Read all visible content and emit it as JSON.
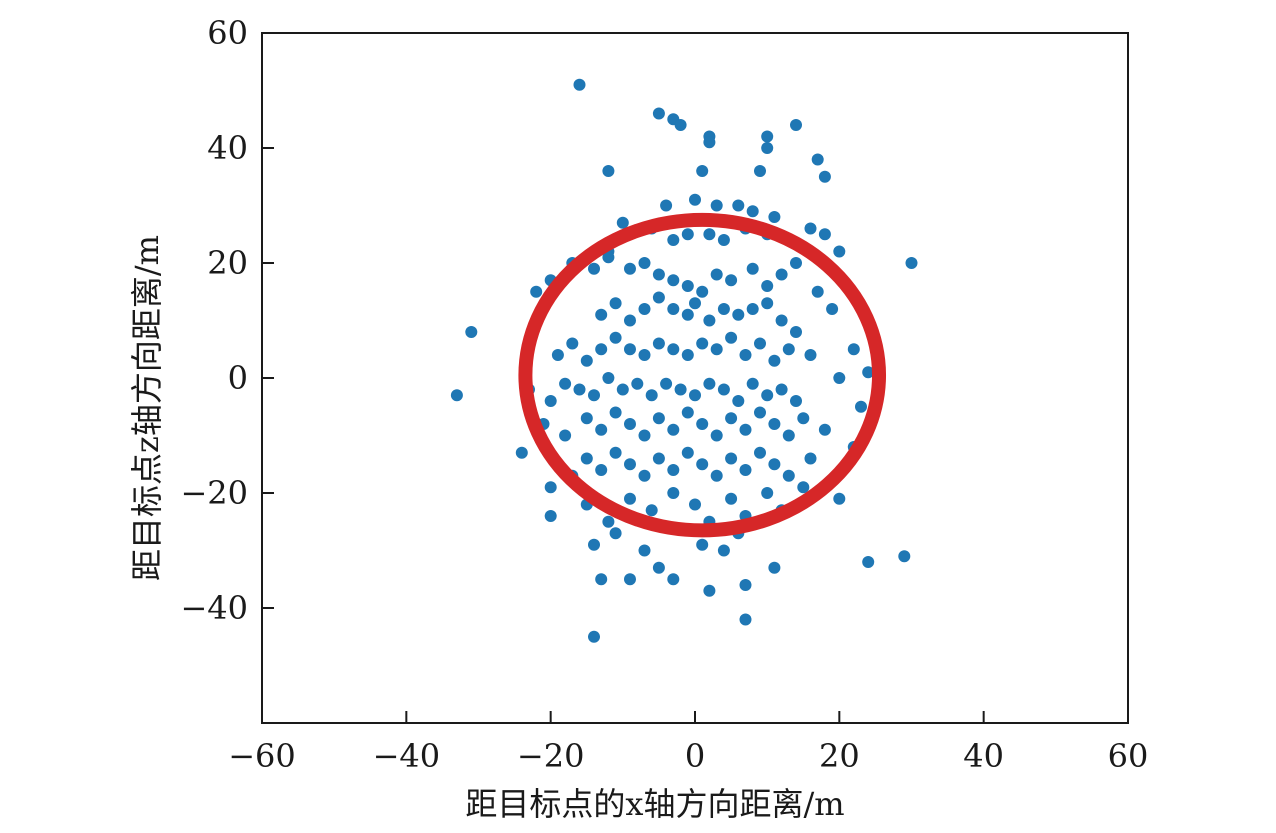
{
  "chart_data": {
    "type": "scatter",
    "title": "",
    "xlabel": "距目标点的x轴方向距离/m",
    "ylabel": "距目标点z轴方向距离/m",
    "xlim": [
      -60,
      60
    ],
    "ylim": [
      -60,
      60
    ],
    "x_ticks": [
      -60,
      -40,
      -20,
      0,
      20,
      40,
      60
    ],
    "y_ticks": [
      -40,
      -20,
      0,
      20,
      40,
      60
    ],
    "grid": false,
    "legend": "none",
    "point_color": "#1f77b4",
    "circle_color": "#d62728",
    "circle": {
      "cx": 1.0,
      "cy": 0.5,
      "rx": 24.5,
      "ry": 27.0
    },
    "series": [
      {
        "points": [
          [
            -16,
            51
          ],
          [
            -5,
            46
          ],
          [
            -3,
            45
          ],
          [
            -2,
            44
          ],
          [
            2,
            42
          ],
          [
            2,
            41
          ],
          [
            10,
            42
          ],
          [
            10,
            40
          ],
          [
            14,
            44
          ],
          [
            -12,
            36
          ],
          [
            1,
            36
          ],
          [
            9,
            36
          ],
          [
            17,
            38
          ],
          [
            18,
            35
          ],
          [
            -4,
            30
          ],
          [
            0,
            31
          ],
          [
            3,
            30
          ],
          [
            6,
            30
          ],
          [
            8,
            29
          ],
          [
            11,
            28
          ],
          [
            -12,
            22
          ],
          [
            -10,
            27
          ],
          [
            -9,
            25
          ],
          [
            -6,
            26
          ],
          [
            -3,
            24
          ],
          [
            -1,
            25
          ],
          [
            2,
            25
          ],
          [
            4,
            24
          ],
          [
            7,
            26
          ],
          [
            10,
            25
          ],
          [
            13,
            24
          ],
          [
            16,
            26
          ],
          [
            18,
            25
          ],
          [
            20,
            22
          ],
          [
            30,
            20
          ],
          [
            -22,
            15
          ],
          [
            -20,
            17
          ],
          [
            -17,
            20
          ],
          [
            -14,
            19
          ],
          [
            -12,
            21
          ],
          [
            -9,
            19
          ],
          [
            -7,
            20
          ],
          [
            -5,
            18
          ],
          [
            -3,
            17
          ],
          [
            -1,
            16
          ],
          [
            1,
            15
          ],
          [
            3,
            18
          ],
          [
            5,
            17
          ],
          [
            8,
            19
          ],
          [
            10,
            16
          ],
          [
            12,
            18
          ],
          [
            14,
            20
          ],
          [
            17,
            15
          ],
          [
            19,
            12
          ],
          [
            -13,
            11
          ],
          [
            -11,
            13
          ],
          [
            -9,
            10
          ],
          [
            -7,
            12
          ],
          [
            -5,
            14
          ],
          [
            -3,
            12
          ],
          [
            -1,
            11
          ],
          [
            0,
            13
          ],
          [
            2,
            10
          ],
          [
            4,
            12
          ],
          [
            6,
            11
          ],
          [
            8,
            12
          ],
          [
            10,
            13
          ],
          [
            12,
            10
          ],
          [
            14,
            8
          ],
          [
            -31,
            8
          ],
          [
            -19,
            4
          ],
          [
            -17,
            6
          ],
          [
            -15,
            3
          ],
          [
            -13,
            5
          ],
          [
            -11,
            7
          ],
          [
            -9,
            5
          ],
          [
            -7,
            4
          ],
          [
            -5,
            6
          ],
          [
            -3,
            5
          ],
          [
            -1,
            4
          ],
          [
            1,
            6
          ],
          [
            3,
            5
          ],
          [
            5,
            7
          ],
          [
            7,
            4
          ],
          [
            9,
            6
          ],
          [
            11,
            3
          ],
          [
            13,
            5
          ],
          [
            16,
            4
          ],
          [
            20,
            0
          ],
          [
            22,
            5
          ],
          [
            24,
            1
          ],
          [
            -33,
            -3
          ],
          [
            -23,
            -2
          ],
          [
            -20,
            -4
          ],
          [
            -18,
            -1
          ],
          [
            -16,
            -2
          ],
          [
            -14,
            -3
          ],
          [
            -12,
            0
          ],
          [
            -10,
            -2
          ],
          [
            -8,
            -1
          ],
          [
            -6,
            -3
          ],
          [
            -4,
            -1
          ],
          [
            -2,
            -2
          ],
          [
            0,
            -3
          ],
          [
            2,
            -1
          ],
          [
            4,
            -2
          ],
          [
            6,
            -4
          ],
          [
            8,
            -1
          ],
          [
            10,
            -3
          ],
          [
            12,
            -2
          ],
          [
            14,
            -4
          ],
          [
            23,
            -5
          ],
          [
            -24,
            -13
          ],
          [
            -21,
            -8
          ],
          [
            -18,
            -10
          ],
          [
            -15,
            -7
          ],
          [
            -13,
            -9
          ],
          [
            -11,
            -6
          ],
          [
            -9,
            -8
          ],
          [
            -7,
            -10
          ],
          [
            -5,
            -7
          ],
          [
            -3,
            -9
          ],
          [
            -1,
            -6
          ],
          [
            1,
            -8
          ],
          [
            3,
            -10
          ],
          [
            5,
            -7
          ],
          [
            7,
            -9
          ],
          [
            9,
            -6
          ],
          [
            11,
            -8
          ],
          [
            13,
            -10
          ],
          [
            15,
            -7
          ],
          [
            18,
            -9
          ],
          [
            22,
            -12
          ],
          [
            -17,
            -17
          ],
          [
            -15,
            -14
          ],
          [
            -13,
            -16
          ],
          [
            -11,
            -13
          ],
          [
            -9,
            -15
          ],
          [
            -7,
            -17
          ],
          [
            -5,
            -14
          ],
          [
            -3,
            -16
          ],
          [
            -1,
            -13
          ],
          [
            1,
            -15
          ],
          [
            3,
            -17
          ],
          [
            5,
            -14
          ],
          [
            7,
            -16
          ],
          [
            9,
            -13
          ],
          [
            11,
            -15
          ],
          [
            13,
            -17
          ],
          [
            16,
            -14
          ],
          [
            -20,
            -19
          ],
          [
            -20,
            -24
          ],
          [
            -15,
            -22
          ],
          [
            -12,
            -25
          ],
          [
            -9,
            -21
          ],
          [
            -6,
            -23
          ],
          [
            -3,
            -20
          ],
          [
            0,
            -22
          ],
          [
            2,
            -25
          ],
          [
            5,
            -21
          ],
          [
            7,
            -24
          ],
          [
            10,
            -20
          ],
          [
            12,
            -23
          ],
          [
            15,
            -19
          ],
          [
            20,
            -21
          ],
          [
            -14,
            -29
          ],
          [
            -11,
            -27
          ],
          [
            -7,
            -30
          ],
          [
            -5,
            -33
          ],
          [
            1,
            -29
          ],
          [
            4,
            -30
          ],
          [
            6,
            -27
          ],
          [
            11,
            -33
          ],
          [
            -13,
            -35
          ],
          [
            -9,
            -35
          ],
          [
            -3,
            -35
          ],
          [
            2,
            -37
          ],
          [
            7,
            -36
          ],
          [
            24,
            -32
          ],
          [
            29,
            -31
          ],
          [
            7,
            -42
          ],
          [
            -14,
            -45
          ]
        ]
      }
    ]
  }
}
